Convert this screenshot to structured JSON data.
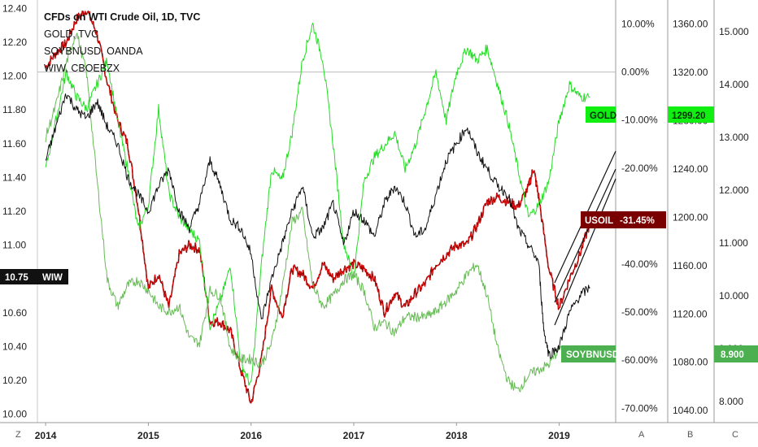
{
  "chart_data": {
    "type": "line",
    "legend": [
      "CFDs on WTI Crude Oil, 1D, TVC",
      "GOLD, TVC",
      "SOYBNUSD, OANDA",
      "WIW, CBOEBZX"
    ],
    "x_ticks": [
      "2014",
      "2015",
      "2016",
      "2017",
      "2018",
      "2019"
    ],
    "axis_left": {
      "ticks": [
        "12.40",
        "12.20",
        "12.00",
        "11.80",
        "11.60",
        "11.40",
        "11.20",
        "11.00",
        "10.60",
        "10.40",
        "10.20",
        "10.00"
      ],
      "ylim": [
        9.95,
        12.45
      ]
    },
    "axis_percent": {
      "ticks": [
        "10.00%",
        "0.00%",
        "-10.00%",
        "-20.00%",
        "-30.00%",
        "-40.00%",
        "-50.00%",
        "-60.00%",
        "-70.00%"
      ],
      "ylim": [
        -73.0,
        15.0
      ]
    },
    "axis_gold": {
      "ticks": [
        "1360.00",
        "1320.00",
        "1280.00",
        "1240.00",
        "1200.00",
        "1160.00",
        "1120.00",
        "1080.00",
        "1040.00"
      ],
      "ylim": [
        1030.0,
        1380.0
      ]
    },
    "axis_soy": {
      "ticks": [
        "15.000",
        "14.000",
        "13.000",
        "12.000",
        "11.000",
        "10.000",
        "9.000",
        "8.000"
      ],
      "ylim": [
        7.6,
        15.6
      ]
    },
    "price_tags": {
      "wiw": {
        "value": "10.75",
        "label": "WIW"
      },
      "gold": {
        "label": "GOLD",
        "value": "1299.20"
      },
      "usoil": {
        "label": "USOIL",
        "value": "-31.45%"
      },
      "soy": {
        "label": "SOYBNUSD",
        "value": "8.900"
      }
    },
    "axis_buttons": {
      "z": "Z",
      "a": "A",
      "b": "B",
      "c": "C"
    },
    "series": [
      {
        "key": "usoil",
        "axis": "percent",
        "color": "#a30000",
        "highlight": "#ff1a1a",
        "x": [
          2014.0,
          2014.1,
          2014.2,
          2014.3,
          2014.4,
          2014.5,
          2014.6,
          2014.7,
          2014.8,
          2014.9,
          2015.0,
          2015.1,
          2015.2,
          2015.3,
          2015.4,
          2015.5,
          2015.6,
          2015.7,
          2015.8,
          2015.9,
          2016.0,
          2016.1,
          2016.2,
          2016.3,
          2016.4,
          2016.5,
          2016.6,
          2016.7,
          2016.8,
          2016.9,
          2017.0,
          2017.1,
          2017.2,
          2017.3,
          2017.4,
          2017.5,
          2017.6,
          2017.7,
          2017.8,
          2017.9,
          2018.0,
          2018.1,
          2018.2,
          2018.3,
          2018.4,
          2018.5,
          2018.6,
          2018.7,
          2018.75,
          2018.8,
          2018.9,
          2019.0,
          2019.1,
          2019.2,
          2019.3
        ],
        "y": [
          1.0,
          4.0,
          6.0,
          11.0,
          13.0,
          8.0,
          -2.0,
          -10.0,
          -15.0,
          -28.0,
          -45.0,
          -42.0,
          -49.0,
          -38.0,
          -36.0,
          -37.0,
          -52.0,
          -52.0,
          -54.0,
          -62.0,
          -69.0,
          -60.0,
          -45.0,
          -51.0,
          -41.0,
          -42.0,
          -45.0,
          -40.0,
          -43.0,
          -41.0,
          -40.0,
          -41.0,
          -43.0,
          -50.0,
          -46.0,
          -49.0,
          -46.0,
          -44.0,
          -40.0,
          -38.0,
          -36.0,
          -36.0,
          -32.0,
          -27.0,
          -26.0,
          -27.0,
          -28.0,
          -24.0,
          -20.0,
          -26.0,
          -41.0,
          -49.0,
          -43.0,
          -38.0,
          -31.45
        ]
      },
      {
        "key": "gold",
        "axis": "gold",
        "color": "#22dd22",
        "x": [
          2014.0,
          2014.1,
          2014.2,
          2014.3,
          2014.4,
          2014.5,
          2014.6,
          2014.7,
          2014.8,
          2014.9,
          2015.0,
          2015.1,
          2015.2,
          2015.3,
          2015.4,
          2015.5,
          2015.6,
          2015.7,
          2015.8,
          2015.9,
          2016.0,
          2016.1,
          2016.2,
          2016.3,
          2016.4,
          2016.5,
          2016.6,
          2016.7,
          2016.8,
          2016.9,
          2017.0,
          2017.1,
          2017.2,
          2017.3,
          2017.4,
          2017.5,
          2017.6,
          2017.7,
          2017.8,
          2017.9,
          2018.0,
          2018.1,
          2018.2,
          2018.3,
          2018.4,
          2018.5,
          2018.6,
          2018.7,
          2018.8,
          2018.9,
          2019.0,
          2019.1,
          2019.2,
          2019.3
        ],
        "y": [
          1240,
          1280,
          1320,
          1300,
          1290,
          1310,
          1330,
          1280,
          1240,
          1190,
          1210,
          1290,
          1220,
          1200,
          1190,
          1180,
          1110,
          1130,
          1160,
          1080,
          1060,
          1160,
          1240,
          1230,
          1270,
          1330,
          1360,
          1330,
          1260,
          1180,
          1150,
          1230,
          1250,
          1260,
          1270,
          1240,
          1260,
          1290,
          1320,
          1280,
          1320,
          1340,
          1330,
          1340,
          1310,
          1280,
          1240,
          1200,
          1210,
          1230,
          1280,
          1310,
          1300,
          1299.2
        ]
      },
      {
        "key": "soy",
        "axis": "soy",
        "color": "#66bb55",
        "x": [
          2014.0,
          2014.1,
          2014.2,
          2014.3,
          2014.4,
          2014.5,
          2014.6,
          2014.7,
          2014.8,
          2014.9,
          2015.0,
          2015.1,
          2015.2,
          2015.3,
          2015.4,
          2015.5,
          2015.6,
          2015.7,
          2015.8,
          2015.9,
          2016.0,
          2016.1,
          2016.2,
          2016.3,
          2016.4,
          2016.5,
          2016.6,
          2016.7,
          2016.8,
          2016.9,
          2017.0,
          2017.1,
          2017.2,
          2017.3,
          2017.4,
          2017.5,
          2017.6,
          2017.7,
          2017.8,
          2017.9,
          2018.0,
          2018.1,
          2018.2,
          2018.3,
          2018.4,
          2018.5,
          2018.6,
          2018.7,
          2018.8,
          2018.9,
          2019.0,
          2019.1,
          2019.2,
          2019.3
        ],
        "y": [
          13.0,
          13.6,
          14.4,
          15.0,
          14.2,
          12.2,
          10.3,
          9.8,
          10.2,
          10.3,
          10.1,
          9.8,
          9.7,
          9.8,
          9.2,
          9.1,
          10.1,
          10.0,
          9.0,
          8.8,
          8.8,
          8.7,
          9.1,
          10.1,
          11.4,
          11.6,
          10.2,
          9.8,
          10.0,
          10.3,
          10.4,
          10.1,
          9.4,
          9.5,
          9.3,
          9.6,
          9.6,
          9.6,
          9.7,
          9.9,
          10.1,
          10.4,
          10.6,
          10.0,
          9.0,
          8.4,
          8.2,
          8.5,
          8.6,
          8.7,
          9.0,
          8.8,
          8.9,
          8.9
        ]
      },
      {
        "key": "wiw",
        "axis": "left",
        "color": "#111111",
        "x": [
          2014.0,
          2014.1,
          2014.2,
          2014.3,
          2014.4,
          2014.5,
          2014.6,
          2014.7,
          2014.8,
          2014.9,
          2015.0,
          2015.1,
          2015.2,
          2015.3,
          2015.4,
          2015.5,
          2015.6,
          2015.7,
          2015.8,
          2015.9,
          2016.0,
          2016.1,
          2016.2,
          2016.3,
          2016.4,
          2016.5,
          2016.6,
          2016.7,
          2016.8,
          2016.9,
          2017.0,
          2017.1,
          2017.2,
          2017.3,
          2017.4,
          2017.5,
          2017.6,
          2017.7,
          2017.8,
          2017.9,
          2018.0,
          2018.1,
          2018.2,
          2018.3,
          2018.4,
          2018.5,
          2018.6,
          2018.7,
          2018.8,
          2018.85,
          2018.9,
          2019.0,
          2019.1,
          2019.2,
          2019.3
        ],
        "y": [
          11.5,
          11.7,
          11.9,
          11.8,
          11.75,
          11.85,
          11.7,
          11.6,
          11.4,
          11.3,
          11.2,
          11.35,
          11.45,
          11.2,
          11.1,
          11.25,
          11.5,
          11.35,
          11.15,
          11.1,
          10.95,
          10.55,
          10.8,
          11.0,
          11.2,
          11.35,
          11.05,
          11.1,
          11.25,
          11.0,
          11.2,
          11.15,
          11.05,
          11.25,
          11.35,
          11.25,
          11.05,
          11.1,
          11.3,
          11.5,
          11.6,
          11.7,
          11.55,
          11.45,
          11.35,
          11.3,
          11.1,
          11.0,
          10.9,
          10.5,
          10.35,
          10.4,
          10.6,
          10.7,
          10.75
        ]
      }
    ]
  }
}
